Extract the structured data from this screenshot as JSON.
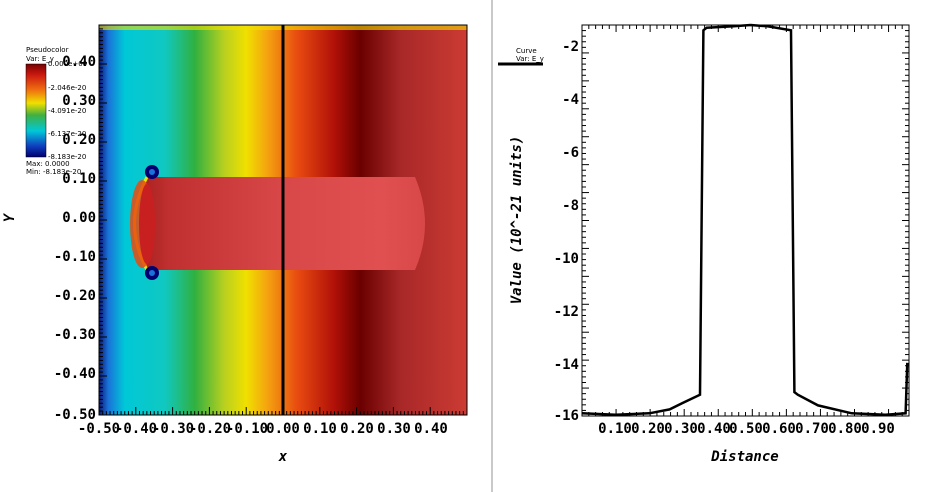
{
  "left_plot": {
    "legend": {
      "title": "Pseudocolor",
      "var": "Var: E_y",
      "labels": [
        "0.000e+00",
        "-2.046e-20",
        "-4.091e-20",
        "-6.137e-20",
        "-8.183e-20"
      ],
      "max": "Max: 0.0000",
      "min": "Min: -8.183e-20"
    },
    "xlabel": "x",
    "ylabel": "Y",
    "xticks": [
      "-0.50",
      "-0.40",
      "-0.30",
      "-0.20",
      "-0.10",
      "0.00",
      "0.10",
      "0.20",
      "0.30",
      "0.40"
    ],
    "yticks": [
      "0.40",
      "0.30",
      "0.20",
      "0.10",
      "0.00",
      "-0.10",
      "-0.20",
      "-0.30",
      "-0.40",
      "-0.50"
    ],
    "colors": {
      "dark_red": "#7a0000",
      "red": "#cc3b33",
      "light_red": "#df5050",
      "orange": "#f08a10",
      "yellow": "#f0e000",
      "green": "#30b030",
      "cyan": "#00c8d8",
      "blue": "#1040c0",
      "navy": "#000070"
    }
  },
  "right_plot": {
    "legend": {
      "title": "Curve",
      "var": "Var: E_y"
    },
    "xlabel": "Distance",
    "ylabel": "Value (10^-21 units)",
    "xticks": [
      "0.10",
      "0.20",
      "0.30",
      "0.40",
      "0.50",
      "0.60",
      "0.70",
      "0.80",
      "0.90"
    ],
    "yticks": [
      "-2",
      "-4",
      "-6",
      "-8",
      "-10",
      "-12",
      "-14",
      "-16"
    ]
  },
  "chart_data": [
    {
      "type": "heatmap",
      "variable": "E_y",
      "xlim": [
        -0.5,
        0.5
      ],
      "ylim": [
        -0.5,
        0.5
      ],
      "color_range": [
        -8.183e-20,
        0.0
      ],
      "lineout_x": 0.0
    },
    {
      "type": "line",
      "variable": "E_y",
      "xlabel": "Distance",
      "ylabel": "Value (10^-21 units)",
      "xlim": [
        0.0,
        0.97
      ],
      "ylim": [
        -16.0,
        -1.3
      ],
      "x": [
        0.0,
        0.1,
        0.2,
        0.26,
        0.3,
        0.35,
        0.36,
        0.37,
        0.45,
        0.5,
        0.55,
        0.62,
        0.63,
        0.64,
        0.7,
        0.8,
        0.9,
        0.96,
        0.965
      ],
      "y": [
        -15.9,
        -15.95,
        -15.9,
        -15.75,
        -15.5,
        -15.2,
        -1.5,
        -1.4,
        -1.35,
        -1.3,
        -1.35,
        -1.5,
        -15.1,
        -15.2,
        -15.6,
        -15.9,
        -15.95,
        -15.9,
        -14.0
      ]
    }
  ]
}
